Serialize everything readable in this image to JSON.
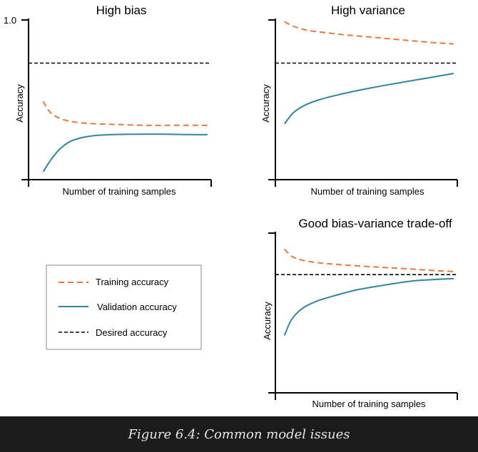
{
  "caption": "Figure 6.4: Common model issues",
  "colors": {
    "training": "#e8793a",
    "validation": "#2e86a0",
    "desired": "#000000",
    "axis": "#000000",
    "caption_bg": "#1b1b1b",
    "caption_text": "#e6e6e6"
  },
  "legend": {
    "training": "Training accuracy",
    "validation": "Validation accuracy",
    "desired": "Desired accuracy"
  },
  "chart_data": [
    {
      "type": "line",
      "title": "High bias",
      "xlabel": "Number of training samples",
      "ylabel": "Accuracy",
      "ytick_top": "1.0",
      "xlim": [
        0,
        1
      ],
      "ylim": [
        0,
        1
      ],
      "series": [
        {
          "key": "training",
          "style": "dashed",
          "x": [
            0.08,
            0.12,
            0.18,
            0.26,
            0.36,
            0.5,
            0.65,
            0.8,
            0.98
          ],
          "y": [
            0.49,
            0.42,
            0.38,
            0.36,
            0.35,
            0.345,
            0.34,
            0.34,
            0.34
          ]
        },
        {
          "key": "validation",
          "style": "solid",
          "x": [
            0.08,
            0.12,
            0.17,
            0.23,
            0.3,
            0.38,
            0.48,
            0.6,
            0.75,
            0.88,
            0.98
          ],
          "y": [
            0.05,
            0.12,
            0.19,
            0.24,
            0.265,
            0.278,
            0.283,
            0.285,
            0.285,
            0.282,
            0.282
          ]
        },
        {
          "key": "desired",
          "style": "dashed",
          "x": [
            0,
            1
          ],
          "y": [
            0.73,
            0.73
          ]
        }
      ]
    },
    {
      "type": "line",
      "title": "High variance",
      "xlabel": "Number of training samples",
      "ylabel": "Accuracy",
      "xlim": [
        0,
        1
      ],
      "ylim": [
        0,
        1
      ],
      "series": [
        {
          "key": "training",
          "style": "dashed",
          "x": [
            0.05,
            0.1,
            0.18,
            0.28,
            0.4,
            0.55,
            0.7,
            0.85,
            0.98
          ],
          "y": [
            0.99,
            0.96,
            0.935,
            0.92,
            0.905,
            0.89,
            0.875,
            0.86,
            0.85
          ]
        },
        {
          "key": "validation",
          "style": "solid",
          "x": [
            0.05,
            0.1,
            0.16,
            0.24,
            0.34,
            0.46,
            0.6,
            0.75,
            0.88,
            0.98
          ],
          "y": [
            0.35,
            0.42,
            0.465,
            0.5,
            0.53,
            0.56,
            0.59,
            0.62,
            0.645,
            0.665
          ]
        },
        {
          "key": "desired",
          "style": "dashed",
          "x": [
            0,
            1
          ],
          "y": [
            0.73,
            0.73
          ]
        }
      ]
    },
    {
      "type": "line",
      "title": "Good bias-variance trade-off",
      "xlabel": "Number of training samples",
      "ylabel": "Accuracy",
      "xlim": [
        0,
        1
      ],
      "ylim": [
        0,
        1
      ],
      "series": [
        {
          "key": "training",
          "style": "dashed",
          "x": [
            0.05,
            0.09,
            0.15,
            0.23,
            0.33,
            0.45,
            0.6,
            0.75,
            0.88,
            0.98
          ],
          "y": [
            0.9,
            0.855,
            0.83,
            0.815,
            0.805,
            0.795,
            0.785,
            0.775,
            0.765,
            0.76
          ]
        },
        {
          "key": "validation",
          "style": "solid",
          "x": [
            0.05,
            0.09,
            0.15,
            0.23,
            0.33,
            0.45,
            0.6,
            0.75,
            0.88,
            0.98
          ],
          "y": [
            0.36,
            0.46,
            0.53,
            0.575,
            0.61,
            0.645,
            0.675,
            0.7,
            0.71,
            0.715
          ]
        },
        {
          "key": "desired",
          "style": "dashed",
          "x": [
            0,
            1
          ],
          "y": [
            0.74,
            0.74
          ]
        }
      ]
    }
  ]
}
